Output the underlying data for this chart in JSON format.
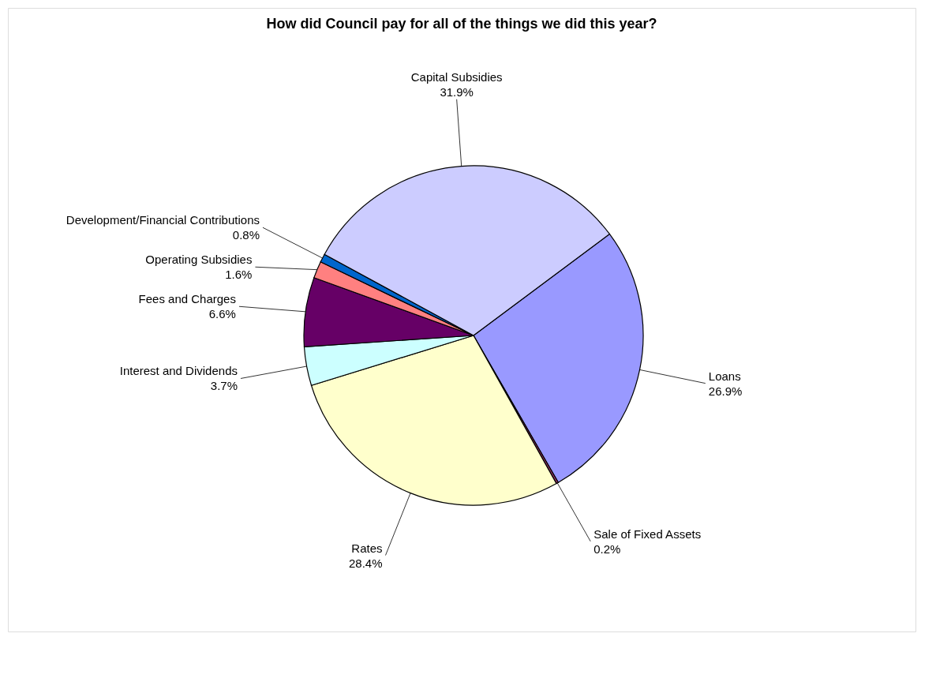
{
  "chart_data": {
    "type": "pie",
    "title": "How did Council pay for all of the things we did this year?",
    "categories": [
      "Loans",
      "Sale of Fixed Assets",
      "Rates",
      "Interest and Dividends",
      "Fees and Charges",
      "Operating Subsidies",
      "Development/Financial Contributions",
      "Capital Subsidies"
    ],
    "values": [
      26.9,
      0.2,
      28.4,
      3.7,
      6.6,
      1.6,
      0.8,
      31.9
    ],
    "value_labels": [
      "26.9%",
      "0.2%",
      "28.4%",
      "3.7%",
      "6.6%",
      "1.6%",
      "0.8%",
      "31.9%"
    ],
    "colors": [
      "#9999ff",
      "#993366",
      "#ffffcc",
      "#ccffff",
      "#660066",
      "#ff8080",
      "#0066cc",
      "#ccccff"
    ],
    "legend": false
  }
}
